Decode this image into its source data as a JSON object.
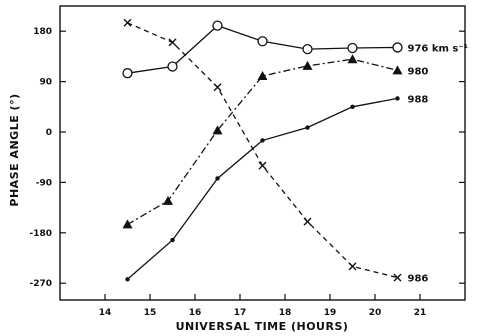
{
  "chart_data": {
    "type": "line",
    "xlabel": "UNIVERSAL TIME (HOURS)",
    "ylabel": "PHASE ANGLE (°)",
    "xlim": [
      13,
      22
    ],
    "ylim": [
      -300,
      225
    ],
    "xticks": [
      14,
      15,
      16,
      17,
      18,
      19,
      20,
      21
    ],
    "yticks": [
      180,
      90,
      0,
      -90,
      -180,
      -270
    ],
    "grid": false,
    "series": [
      {
        "name": "976 km s⁻¹",
        "marker": "circle",
        "line_style": "solid",
        "x": [
          14.5,
          15.5,
          16.5,
          17.5,
          18.5,
          19.5,
          20.5
        ],
        "y": [
          105,
          117,
          190,
          162,
          148,
          150,
          151
        ]
      },
      {
        "name": "980",
        "marker": "triangle",
        "line_style": "dashdot",
        "x": [
          14.5,
          15.4,
          16.5,
          17.5,
          18.5,
          19.5,
          20.5
        ],
        "y": [
          -165,
          -123,
          3,
          100,
          118,
          130,
          110
        ]
      },
      {
        "name": "988",
        "marker": "dot",
        "line_style": "solid",
        "x": [
          14.5,
          15.5,
          16.5,
          17.5,
          18.5,
          19.5,
          20.5
        ],
        "y": [
          -263,
          -193,
          -83,
          -15,
          8,
          45,
          60
        ]
      },
      {
        "name": "986",
        "marker": "x",
        "line_style": "dashed",
        "x": [
          14.5,
          15.5,
          16.5,
          17.5,
          18.5,
          19.5,
          20.5
        ],
        "y": [
          195,
          160,
          80,
          -60,
          -160,
          -240,
          -260
        ]
      }
    ]
  }
}
